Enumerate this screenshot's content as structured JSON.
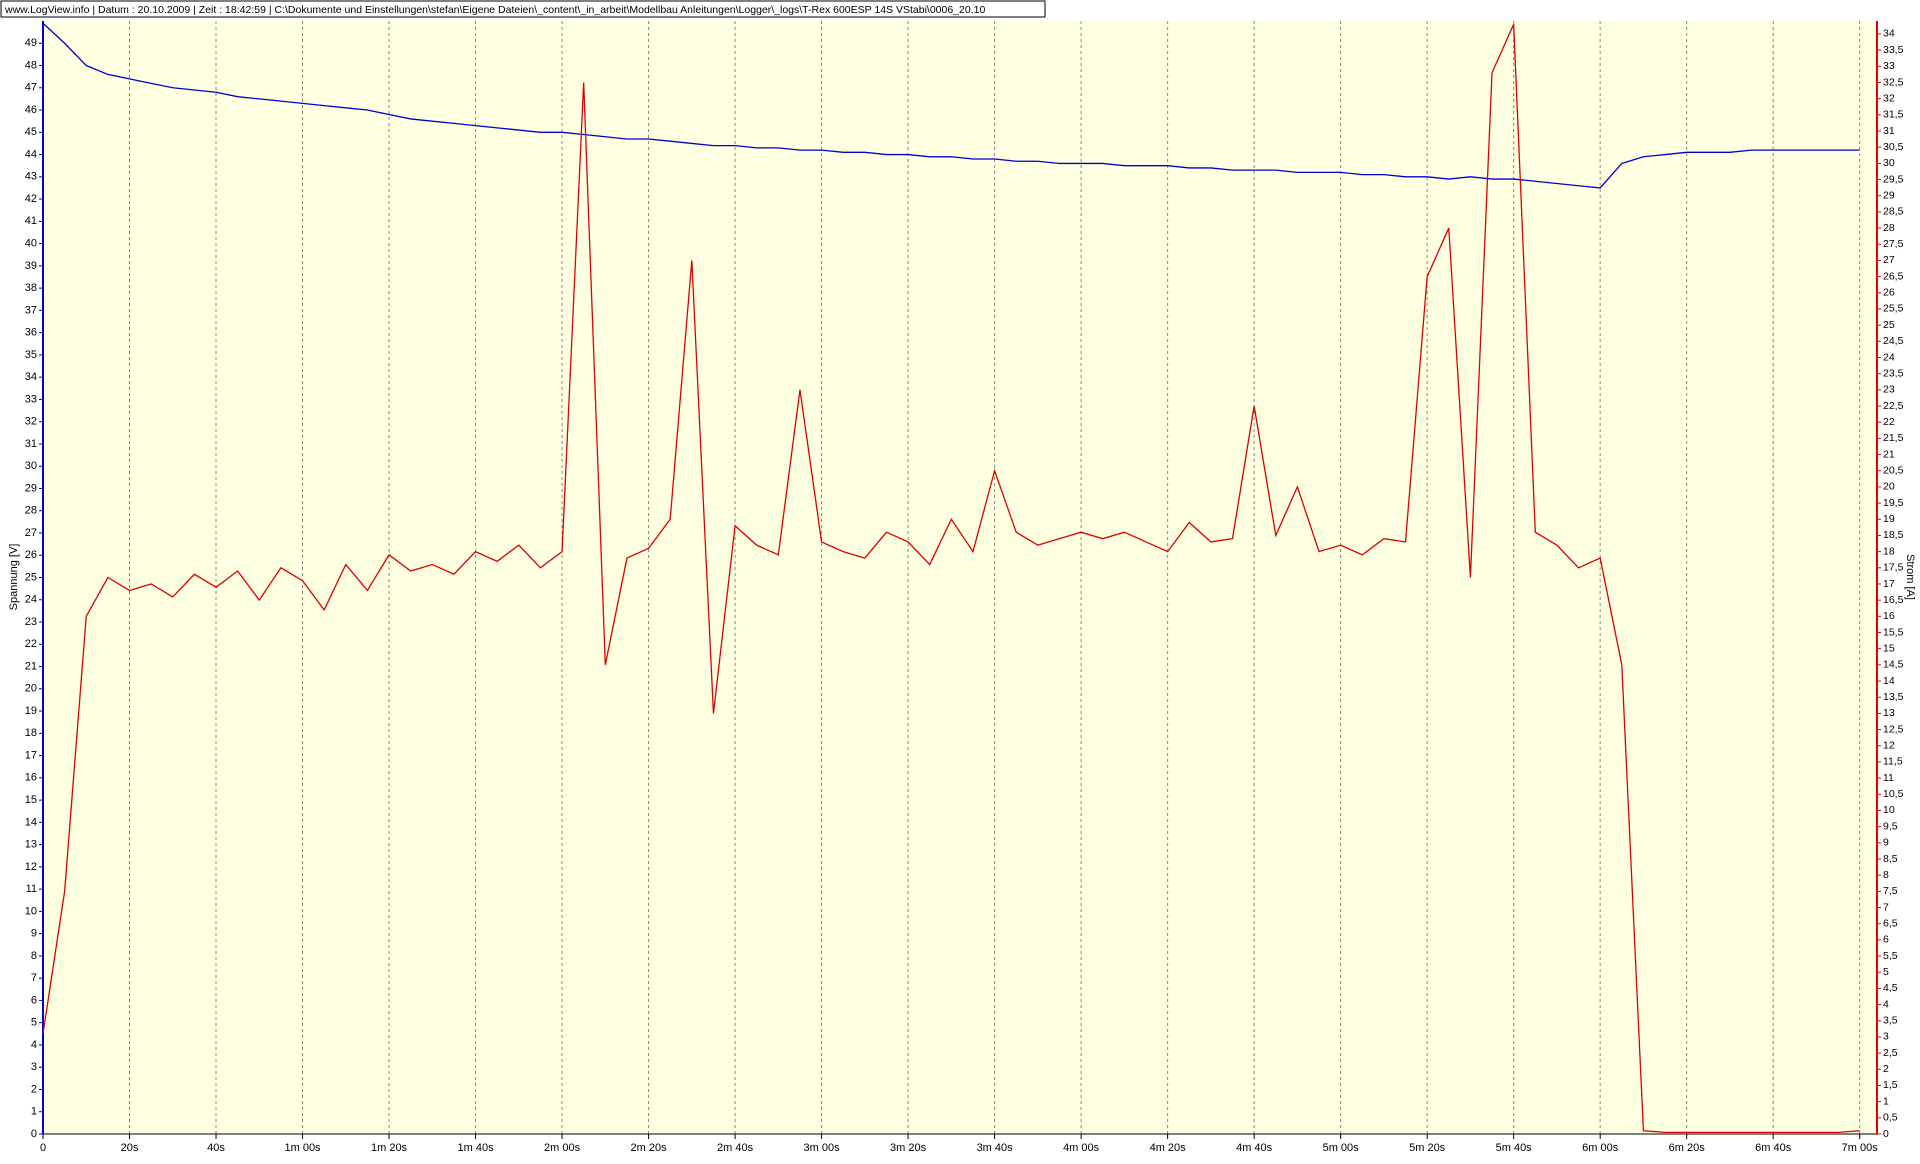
{
  "chart_data": {
    "type": "line",
    "title": "www.LogView.info   |   Datum : 20.10.2009   |   Zeit : 18:42:59   |   C:\\Dokumente und Einstellungen\\stefan\\Eigene Dateien\\_content\\_in_arbeit\\Modellbau Anleitungen\\Logger\\_logs\\T-Rex 600ESP 14S VStabi\\0006_20.10",
    "ylabel": "Spannung [V]",
    "y2label": "Strom [A]",
    "grid": true,
    "x": [
      0,
      5,
      10,
      15,
      20,
      25,
      30,
      35,
      40,
      45,
      50,
      55,
      60,
      65,
      70,
      75,
      80,
      85,
      90,
      95,
      100,
      105,
      110,
      115,
      120,
      125,
      130,
      135,
      140,
      145,
      150,
      155,
      160,
      165,
      170,
      175,
      180,
      185,
      190,
      195,
      200,
      205,
      210,
      215,
      220,
      225,
      230,
      235,
      240,
      245,
      250,
      255,
      260,
      265,
      270,
      275,
      280,
      285,
      290,
      295,
      300,
      305,
      310,
      315,
      320,
      325,
      330,
      335,
      340,
      345,
      350,
      355,
      360,
      365,
      370,
      375,
      380,
      385,
      390,
      395,
      400,
      405,
      410,
      415,
      420
    ],
    "xlim": [
      0,
      424
    ],
    "xticks": [
      0,
      {
        "value": 20,
        "label": "20s"
      },
      {
        "value": 40,
        "label": "40s"
      },
      {
        "value": 60,
        "label": "1m 00s"
      },
      {
        "value": 80,
        "label": "1m 20s"
      },
      {
        "value": 100,
        "label": "1m 40s"
      },
      {
        "value": 120,
        "label": "2m 00s"
      },
      {
        "value": 140,
        "label": "2m 20s"
      },
      {
        "value": 160,
        "label": "2m 40s"
      },
      {
        "value": 180,
        "label": "3m 00s"
      },
      {
        "value": 200,
        "label": "3m 20s"
      },
      {
        "value": 220,
        "label": "3m 40s"
      },
      {
        "value": 240,
        "label": "4m 00s"
      },
      {
        "value": 260,
        "label": "4m 20s"
      },
      {
        "value": 280,
        "label": "4m 40s"
      },
      {
        "value": 300,
        "label": "5m 00s"
      },
      {
        "value": 320,
        "label": "5m 20s"
      },
      {
        "value": 340,
        "label": "5m 40s"
      },
      {
        "value": 360,
        "label": "6m 00s"
      },
      {
        "value": 380,
        "label": "6m 20s"
      },
      {
        "value": 400,
        "label": "6m 40s"
      },
      {
        "value": 420,
        "label": "7m 00s"
      }
    ],
    "ylim": [
      0,
      50
    ],
    "yticks": [
      0,
      1,
      2,
      3,
      4,
      5,
      6,
      7,
      8,
      9,
      10,
      11,
      12,
      13,
      14,
      15,
      16,
      17,
      18,
      19,
      20,
      21,
      22,
      23,
      24,
      25,
      26,
      27,
      28,
      29,
      30,
      31,
      32,
      33,
      34,
      35,
      36,
      37,
      38,
      39,
      40,
      41,
      42,
      43,
      44,
      45,
      46,
      47,
      48,
      49
    ],
    "y2lim": [
      0,
      34.4
    ],
    "y2ticks": [
      0,
      {
        "value": 0.5,
        "label": "0,5"
      },
      1,
      {
        "value": 1.5,
        "label": "1,5"
      },
      2,
      {
        "value": 2.5,
        "label": "2,5"
      },
      3,
      {
        "value": 3.5,
        "label": "3,5"
      },
      4,
      {
        "value": 4.5,
        "label": "4,5"
      },
      5,
      {
        "value": 5.5,
        "label": "5,5"
      },
      6,
      {
        "value": 6.5,
        "label": "6,5"
      },
      7,
      {
        "value": 7.5,
        "label": "7,5"
      },
      8,
      {
        "value": 8.5,
        "label": "8,5"
      },
      9,
      {
        "value": 9.5,
        "label": "9,5"
      },
      10,
      {
        "value": 10.5,
        "label": "10,5"
      },
      11,
      {
        "value": 11.5,
        "label": "11,5"
      },
      12,
      {
        "value": 12.5,
        "label": "12,5"
      },
      13,
      {
        "value": 13.5,
        "label": "13,5"
      },
      14,
      {
        "value": 14.5,
        "label": "14,5"
      },
      15,
      {
        "value": 15.5,
        "label": "15,5"
      },
      16,
      {
        "value": 16.5,
        "label": "16,5"
      },
      17,
      {
        "value": 17.5,
        "label": "17,5"
      },
      18,
      {
        "value": 18.5,
        "label": "18,5"
      },
      19,
      {
        "value": 19.5,
        "label": "19,5"
      },
      20,
      {
        "value": 20.5,
        "label": "20,5"
      },
      21,
      {
        "value": 21.5,
        "label": "21,5"
      },
      22,
      {
        "value": 22.5,
        "label": "22,5"
      },
      23,
      {
        "value": 23.5,
        "label": "23,5"
      },
      24,
      {
        "value": 24.5,
        "label": "24,5"
      },
      25,
      {
        "value": 25.5,
        "label": "25,5"
      },
      26,
      {
        "value": 26.5,
        "label": "26,5"
      },
      27,
      {
        "value": 27.5,
        "label": "27,5"
      },
      28,
      {
        "value": 28.5,
        "label": "28,5"
      },
      29,
      {
        "value": 29.5,
        "label": "29,5"
      },
      30,
      {
        "value": 30.5,
        "label": "30,5"
      },
      31,
      {
        "value": 31.5,
        "label": "31,5"
      },
      32,
      {
        "value": 32.5,
        "label": "32,5"
      },
      33,
      {
        "value": 33.5,
        "label": "33,5"
      },
      34
    ],
    "series": [
      {
        "color": "#0000cc",
        "axis": "y",
        "values": [
          49.9,
          49.0,
          48.0,
          47.6,
          47.4,
          47.2,
          47.0,
          46.9,
          46.8,
          46.6,
          46.5,
          46.4,
          46.3,
          46.2,
          46.1,
          46.0,
          45.8,
          45.6,
          45.5,
          45.4,
          45.3,
          45.2,
          45.1,
          45.0,
          45.0,
          44.9,
          44.8,
          44.7,
          44.7,
          44.6,
          44.5,
          44.4,
          44.4,
          44.3,
          44.3,
          44.2,
          44.2,
          44.1,
          44.1,
          44.0,
          44.0,
          43.9,
          43.9,
          43.8,
          43.8,
          43.7,
          43.7,
          43.6,
          43.6,
          43.6,
          43.5,
          43.5,
          43.5,
          43.4,
          43.4,
          43.3,
          43.3,
          43.3,
          43.2,
          43.2,
          43.2,
          43.1,
          43.1,
          43.0,
          43.0,
          42.9,
          43.0,
          42.9,
          42.9,
          42.8,
          42.7,
          42.6,
          42.5,
          43.6,
          43.9,
          44.0,
          44.1,
          44.1,
          44.1,
          44.2,
          44.2,
          44.2,
          44.2,
          44.2,
          44.2
        ]
      },
      {
        "color": "#dd0000",
        "axis": "y2",
        "values": [
          3.1,
          7.5,
          16.0,
          17.2,
          16.8,
          17.0,
          16.6,
          17.3,
          16.9,
          17.4,
          16.5,
          17.5,
          17.1,
          16.2,
          17.6,
          16.8,
          17.9,
          17.4,
          17.6,
          17.3,
          18.0,
          17.7,
          18.2,
          17.5,
          18.0,
          32.5,
          14.5,
          17.8,
          18.1,
          19.0,
          27.0,
          13.0,
          18.8,
          18.2,
          17.9,
          23.0,
          18.3,
          18.0,
          17.8,
          18.6,
          18.3,
          17.6,
          19.0,
          18.0,
          20.5,
          18.6,
          18.2,
          18.4,
          18.6,
          18.4,
          18.6,
          18.3,
          18.0,
          18.9,
          18.3,
          18.4,
          22.5,
          18.5,
          20.0,
          18.0,
          18.2,
          17.9,
          18.4,
          18.3,
          26.5,
          28.0,
          17.2,
          32.8,
          34.3,
          18.6,
          18.2,
          17.5,
          17.8,
          14.5,
          0.1,
          0.05,
          0.05,
          0.05,
          0.05,
          0.05,
          0.05,
          0.05,
          0.05,
          0.05,
          0.1
        ]
      }
    ]
  }
}
